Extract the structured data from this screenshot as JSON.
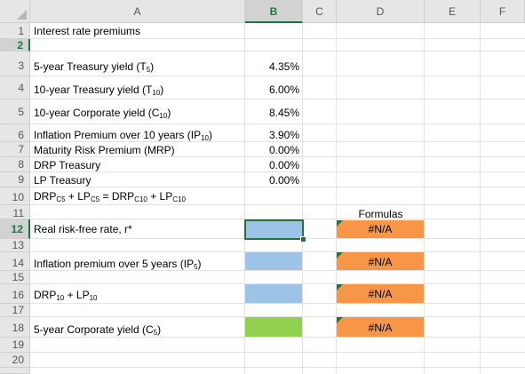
{
  "columns": [
    "A",
    "B",
    "C",
    "D",
    "E",
    "F"
  ],
  "selected_column": "B",
  "rows": [
    "1",
    "2",
    "3",
    "4",
    "5",
    "6",
    "7",
    "8",
    "9",
    "10",
    "11",
    "12",
    "13",
    "14",
    "15",
    "16",
    "17",
    "18",
    "19",
    "20"
  ],
  "selected_row": "12",
  "cells": {
    "a1": "Interest rate premiums",
    "a3": "5-year Treasury yield (T",
    "a3_sub": "5",
    "a4": "10-year Treasury yield (T",
    "a4_sub": "10",
    "a5": "10-year Corporate yield (C",
    "a5_sub": "10",
    "a6": "Inflation Premium over 10 years (IP",
    "a6_sub": "10",
    "a7": "Maturity Risk Premium (MRP)",
    "a8": "DRP Treasury",
    "a9": "LP Treasury",
    "a10_drp": "DRP",
    "a10_c5a": "C5",
    "a10_plus1": " + LP",
    "a10_c5b": "C5",
    "a10_eq": " = DRP",
    "a10_c10a": "C10",
    "a10_plus2": " + LP",
    "a10_c10b": "C10",
    "a12": "Real risk-free rate, r*",
    "a14": "Inflation premium over 5 years (IP",
    "a14_sub": "5",
    "a16_drp": "DRP",
    "a16_sub1": "10",
    "a16_lp": " + LP",
    "a16_sub2": "10",
    "a18": "5-year Corporate yield (C",
    "a18_sub": "5",
    "close_paren": ")",
    "b3": "4.35%",
    "b4": "6.00%",
    "b5": "8.45%",
    "b6": "3.90%",
    "b7": "0.00%",
    "b8": "0.00%",
    "b9": "0.00%",
    "d11": "Formulas",
    "d12": "#N/A",
    "d14": "#N/A",
    "d16": "#N/A",
    "d18": "#N/A"
  },
  "colors": {
    "input_blue": "#9dc3e6",
    "answer_green": "#92d050",
    "formula_orange": "#f79646",
    "selection_green": "#217346"
  }
}
